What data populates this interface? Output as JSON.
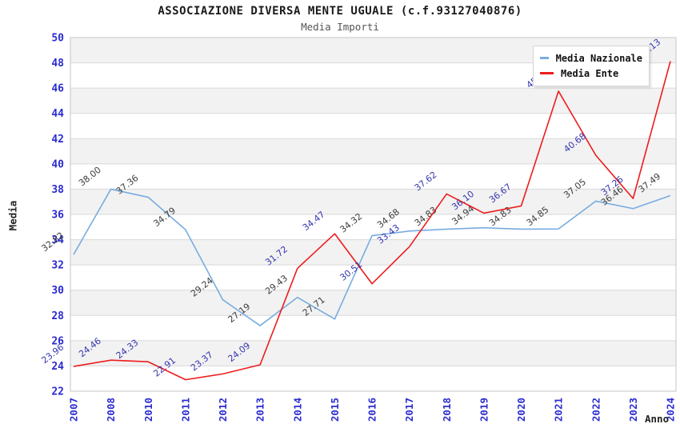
{
  "header": {
    "title": "ASSOCIAZIONE DIVERSA MENTE UGUALE (c.f.93127040876)",
    "subtitle": "Media Importi"
  },
  "axes": {
    "x_label": "Anno",
    "y_label": "Media"
  },
  "colors": {
    "tick_label": "#2b2bd0",
    "grid_line": "#d9d9d9",
    "plot_border": "#c4c4c4",
    "band_gray": "#f2f2f2",
    "band_white": "#ffffff"
  },
  "chart_data": {
    "type": "line",
    "title": "ASSOCIAZIONE DIVERSA MENTE UGUALE (c.f.93127040876)",
    "subtitle": "Media Importi",
    "xlabel": "Anno",
    "ylabel": "Media",
    "ylim": [
      22,
      50
    ],
    "ytick_step": 2,
    "grid": true,
    "legend_position": "top-right",
    "categories": [
      "2007",
      "2008",
      "2010",
      "2011",
      "2012",
      "2013",
      "2014",
      "2015",
      "2016",
      "2017",
      "2018",
      "2019",
      "2020",
      "2021",
      "2022",
      "2023",
      "2024"
    ],
    "series": [
      {
        "name": "Media Nazionale",
        "color": "#78ace0",
        "label_color": "#3d3d3d",
        "values": [
          32.82,
          38.0,
          37.36,
          34.79,
          29.24,
          27.19,
          29.43,
          27.71,
          34.32,
          34.68,
          34.83,
          34.94,
          34.83,
          34.85,
          37.05,
          36.46,
          37.49
        ]
      },
      {
        "name": "Media Ente",
        "color": "#ee1c1c",
        "label_color": "#3636b0",
        "values": [
          23.96,
          24.46,
          24.33,
          22.91,
          23.37,
          24.09,
          31.72,
          34.47,
          30.51,
          33.43,
          37.62,
          36.1,
          36.67,
          45.76,
          40.68,
          37.26,
          48.13
        ]
      }
    ]
  }
}
